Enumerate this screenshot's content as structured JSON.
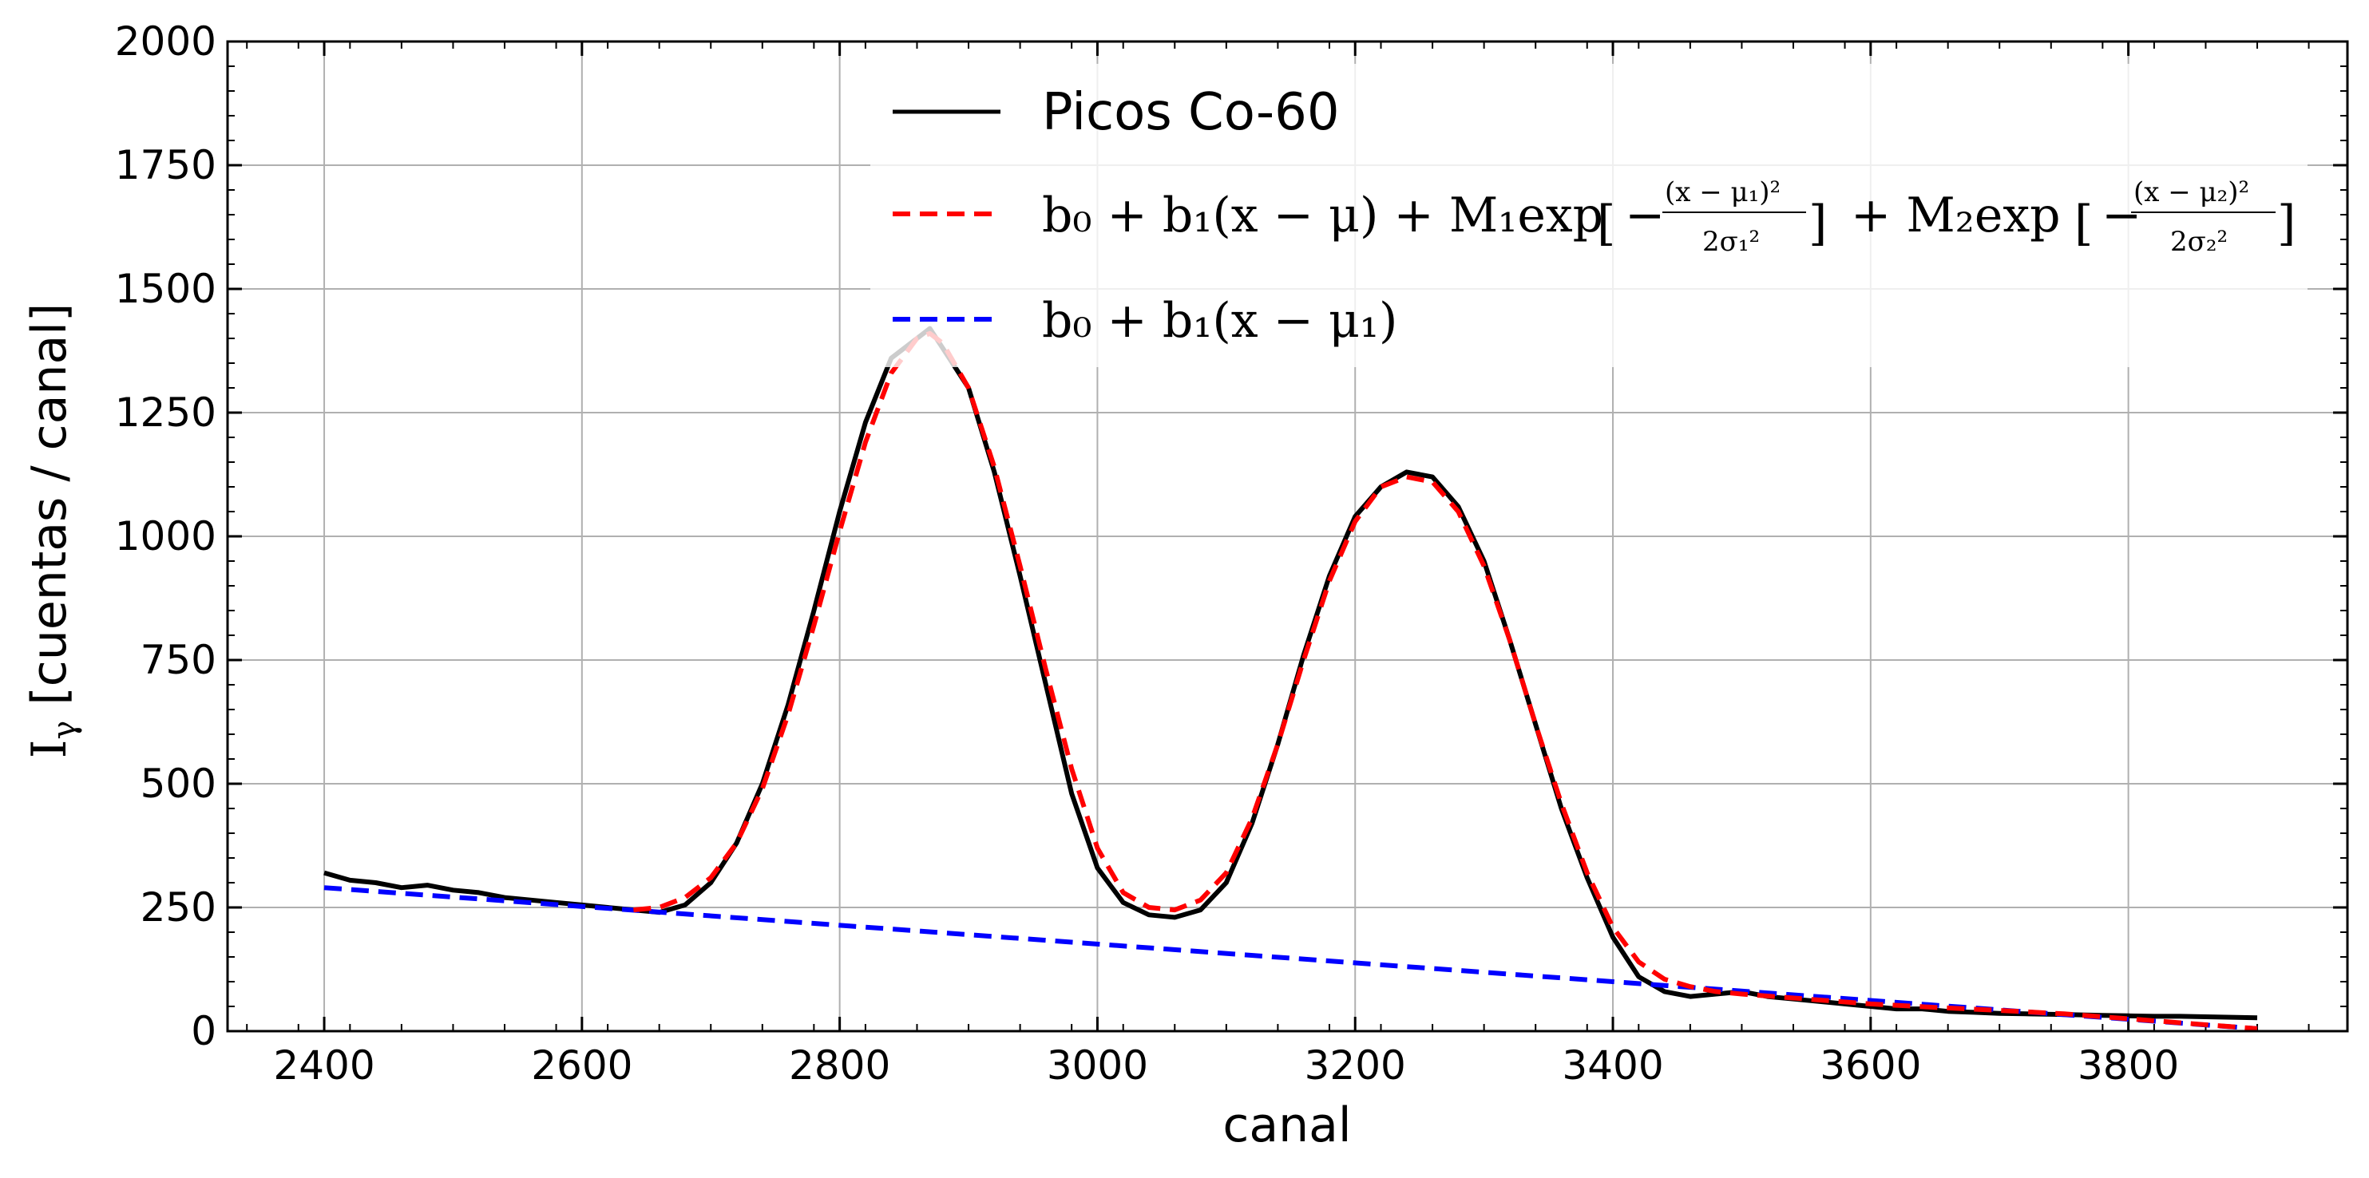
{
  "chart_data": {
    "type": "line",
    "title": "",
    "xlabel": "canal",
    "ylabel": "I",
    "ylabel_sub": "γ",
    "ylabel_unit": "[cuentas / canal]",
    "xlim": [
      2325,
      3970
    ],
    "ylim": [
      0,
      2000
    ],
    "xticks": [
      2400,
      2600,
      2800,
      3000,
      3200,
      3400,
      3600,
      3800
    ],
    "yticks": [
      0,
      250,
      500,
      750,
      1000,
      1250,
      1500,
      1750,
      2000
    ],
    "grid": true,
    "legend_position": "top-center",
    "legend": [
      {
        "label": "Picos Co-60",
        "color": "#000000",
        "style": "solid"
      },
      {
        "label": "b0 + b1(x − μ) + M1exp[−(x − μ1)²/2σ1²] + M2exp[−(x − μ2)²/2σ2²]",
        "color": "#ff0000",
        "style": "dashed"
      },
      {
        "label": "b0 + b1(x − μ1)",
        "color": "#0000ff",
        "style": "dashed"
      }
    ],
    "legend_math": {
      "fit": {
        "part1": "b₀ + b₁(x − μ) + M₁exp",
        "num1": "(x − μ₁)²",
        "den1": "2σ₁²",
        "part2": "+ M₂exp",
        "num2": "(x − μ₂)²",
        "den2": "2σ₂²"
      },
      "background": "b₀ + b₁(x − μ₁)"
    },
    "series": [
      {
        "name": "Picos Co-60",
        "color": "#000000",
        "style": "solid",
        "x": [
          2400,
          2420,
          2440,
          2460,
          2480,
          2500,
          2520,
          2540,
          2560,
          2580,
          2600,
          2620,
          2640,
          2660,
          2680,
          2700,
          2720,
          2740,
          2760,
          2780,
          2800,
          2820,
          2840,
          2860,
          2870,
          2880,
          2900,
          2920,
          2940,
          2960,
          2980,
          3000,
          3020,
          3040,
          3060,
          3080,
          3100,
          3120,
          3140,
          3160,
          3180,
          3200,
          3220,
          3240,
          3260,
          3280,
          3300,
          3320,
          3340,
          3360,
          3380,
          3400,
          3420,
          3440,
          3460,
          3480,
          3500,
          3520,
          3540,
          3560,
          3580,
          3600,
          3620,
          3640,
          3660,
          3680,
          3700,
          3720,
          3740,
          3760,
          3780,
          3800,
          3820,
          3840,
          3860,
          3880,
          3900
        ],
        "y": [
          320,
          305,
          300,
          290,
          295,
          285,
          280,
          270,
          265,
          260,
          255,
          250,
          245,
          240,
          255,
          300,
          380,
          500,
          660,
          850,
          1050,
          1230,
          1360,
          1400,
          1420,
          1380,
          1300,
          1130,
          920,
          700,
          480,
          330,
          260,
          235,
          230,
          245,
          300,
          420,
          580,
          760,
          920,
          1040,
          1100,
          1130,
          1120,
          1060,
          950,
          790,
          620,
          450,
          310,
          190,
          110,
          80,
          70,
          75,
          80,
          70,
          65,
          60,
          55,
          50,
          45,
          45,
          40,
          38,
          36,
          35,
          34,
          33,
          32,
          31,
          30,
          30,
          29,
          28,
          27
        ]
      },
      {
        "name": "b0 + b1(x − μ) + M1exp[−(x − μ1)²/2σ1²] + M2exp[−(x − μ2)²/2σ2²]",
        "color": "#ff0000",
        "style": "dashed",
        "x": [
          2640,
          2660,
          2680,
          2700,
          2720,
          2740,
          2760,
          2780,
          2800,
          2820,
          2840,
          2860,
          2870,
          2880,
          2900,
          2920,
          2940,
          2960,
          2980,
          3000,
          3020,
          3040,
          3060,
          3080,
          3100,
          3120,
          3140,
          3160,
          3180,
          3200,
          3220,
          3240,
          3260,
          3280,
          3300,
          3320,
          3340,
          3360,
          3380,
          3400,
          3420,
          3440,
          3460,
          3480,
          3500,
          3550,
          3600,
          3650,
          3700,
          3750,
          3800,
          3850,
          3900
        ],
        "y": [
          245,
          250,
          270,
          310,
          380,
          490,
          640,
          820,
          1010,
          1190,
          1330,
          1400,
          1410,
          1390,
          1300,
          1140,
          940,
          730,
          530,
          370,
          280,
          250,
          245,
          265,
          320,
          430,
          580,
          750,
          910,
          1030,
          1100,
          1120,
          1110,
          1050,
          940,
          790,
          620,
          460,
          320,
          210,
          140,
          105,
          90,
          80,
          75,
          65,
          55,
          48,
          42,
          35,
          25,
          15,
          5
        ]
      },
      {
        "name": "b0 + b1(x − μ1)",
        "color": "#0000ff",
        "style": "dashed",
        "x": [
          2400,
          3900
        ],
        "y": [
          290,
          5
        ]
      }
    ]
  }
}
